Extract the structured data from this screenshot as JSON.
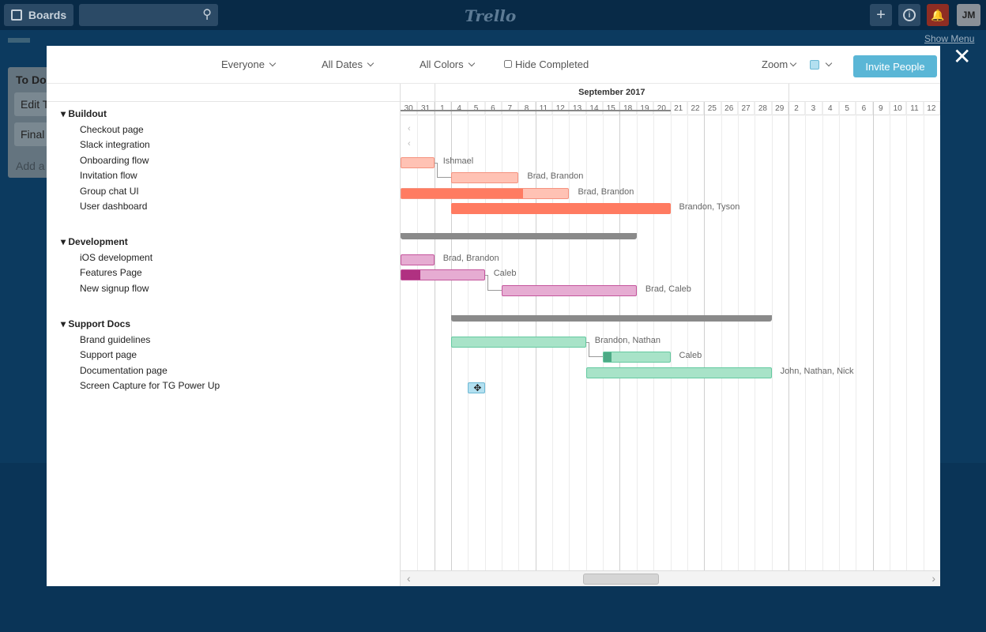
{
  "topbar": {
    "boards_label": "Boards",
    "logo": "Trello",
    "avatar_initials": "JM",
    "icons": [
      "board-icon",
      "search-icon",
      "plus-icon",
      "info-icon",
      "bell-icon"
    ]
  },
  "board": {
    "show_menu": "Show Menu",
    "list_title": "To Do",
    "cards": [
      "Edit T",
      "Final "
    ],
    "add_card": "Add a"
  },
  "toolbar": {
    "everyone": "Everyone",
    "all_dates": "All Dates",
    "all_colors": "All Colors",
    "hide_completed": "Hide Completed",
    "zoom": "Zoom",
    "invite": "Invite People",
    "swatch_color": "#b3e0f0"
  },
  "timeline": {
    "months": [
      {
        "label": "September 2017"
      }
    ],
    "columns": [
      {
        "date": "2017-08-30",
        "day": "30"
      },
      {
        "date": "2017-08-31",
        "day": "31"
      },
      {
        "date": "2017-09-01",
        "day": "1"
      },
      {
        "date": "2017-09-04",
        "day": "4"
      },
      {
        "date": "2017-09-05",
        "day": "5"
      },
      {
        "date": "2017-09-06",
        "day": "6"
      },
      {
        "date": "2017-09-07",
        "day": "7"
      },
      {
        "date": "2017-09-08",
        "day": "8"
      },
      {
        "date": "2017-09-11",
        "day": "11"
      },
      {
        "date": "2017-09-12",
        "day": "12"
      },
      {
        "date": "2017-09-13",
        "day": "13"
      },
      {
        "date": "2017-09-14",
        "day": "14"
      },
      {
        "date": "2017-09-15",
        "day": "15"
      },
      {
        "date": "2017-09-18",
        "day": "18"
      },
      {
        "date": "2017-09-19",
        "day": "19"
      },
      {
        "date": "2017-09-20",
        "day": "20"
      },
      {
        "date": "2017-09-21",
        "day": "21"
      },
      {
        "date": "2017-09-22",
        "day": "22"
      },
      {
        "date": "2017-09-25",
        "day": "25"
      },
      {
        "date": "2017-09-26",
        "day": "26"
      },
      {
        "date": "2017-09-27",
        "day": "27"
      },
      {
        "date": "2017-09-28",
        "day": "28"
      },
      {
        "date": "2017-09-29",
        "day": "29"
      },
      {
        "date": "2017-10-02",
        "day": "2"
      },
      {
        "date": "2017-10-03",
        "day": "3"
      },
      {
        "date": "2017-10-04",
        "day": "4"
      },
      {
        "date": "2017-10-05",
        "day": "5"
      },
      {
        "date": "2017-10-06",
        "day": "6"
      },
      {
        "date": "2017-10-09",
        "day": "9"
      },
      {
        "date": "2017-10-10",
        "day": "10"
      },
      {
        "date": "2017-10-11",
        "day": "11"
      },
      {
        "date": "2017-10-12",
        "day": "12"
      }
    ]
  },
  "groups": [
    {
      "name": "Buildout",
      "summary": {
        "start": "2017-08-30",
        "end": "2017-09-20",
        "style": "line"
      },
      "tasks": [
        {
          "name": "Checkout page",
          "offscreen": "left"
        },
        {
          "name": "Slack integration",
          "offscreen": "left"
        },
        {
          "name": "Onboarding flow",
          "start": "2017-08-30",
          "end": "2017-08-31",
          "assignees": "Ishmael",
          "color": "#ffc2b4",
          "border": "#f5927f",
          "progress": 0
        },
        {
          "name": "Invitation flow",
          "start": "2017-09-04",
          "end": "2017-09-07",
          "assignees": "Brad, Brandon",
          "color": "#ffc2b4",
          "border": "#f5927f",
          "progress": 0,
          "depends_on": "Onboarding flow"
        },
        {
          "name": "Group chat UI",
          "start": "2017-08-30",
          "end": "2017-09-12",
          "assignees": "Brad, Brandon",
          "color": "#ffc2b4",
          "border": "#f5927f",
          "progress": 73,
          "progress_color": "#ff7b61"
        },
        {
          "name": "User dashboard",
          "start": "2017-09-04",
          "end": "2017-09-20",
          "assignees": "Brandon, Tyson",
          "color": "#ff7b61",
          "border": "#ff7b61",
          "progress": 0
        }
      ]
    },
    {
      "name": "Development",
      "summary": {
        "start": "2017-08-30",
        "end": "2017-09-18",
        "style": "bar"
      },
      "tasks": [
        {
          "name": "iOS development",
          "start": "2017-08-30",
          "end": "2017-08-31",
          "assignees": "Brad, Brandon",
          "color": "#e6acd2",
          "border": "#c4559c",
          "progress": 0
        },
        {
          "name": "Features Page",
          "start": "2017-08-30",
          "end": "2017-09-05",
          "assignees": "Caleb",
          "color": "#e6acd2",
          "border": "#c4559c",
          "progress": 23,
          "progress_color": "#b03181"
        },
        {
          "name": "New signup flow",
          "start": "2017-09-07",
          "end": "2017-09-18",
          "assignees": "Brad, Caleb",
          "color": "#e6acd2",
          "border": "#c4559c",
          "progress": 0,
          "depends_on": "Features Page"
        }
      ]
    },
    {
      "name": "Support Docs",
      "summary": {
        "start": "2017-09-04",
        "end": "2017-09-28",
        "style": "bar"
      },
      "tasks": [
        {
          "name": "Brand guidelines",
          "start": "2017-09-04",
          "end": "2017-09-13",
          "assignees": "Brandon, Nathan",
          "color": "#a8e3c8",
          "border": "#64c9a0",
          "progress": 0
        },
        {
          "name": "Support page",
          "start": "2017-09-15",
          "end": "2017-09-20",
          "assignees": "Caleb",
          "color": "#a8e3c8",
          "border": "#64c9a0",
          "progress": 12,
          "progress_color": "#4daa86",
          "depends_on": "Brand guidelines"
        },
        {
          "name": "Documentation page",
          "start": "2017-09-14",
          "end": "2017-09-28",
          "assignees": "John, Nathan, Nick",
          "color": "#a8e3c8",
          "border": "#64c9a0",
          "progress": 0
        },
        {
          "name": "Screen Capture for TG Power Up",
          "start": "2017-09-05",
          "end": "2017-09-05",
          "assignees": "",
          "color": "#b3e0f0",
          "border": "#6cb8d4",
          "progress": 0,
          "icon": "move-icon"
        }
      ]
    }
  ]
}
